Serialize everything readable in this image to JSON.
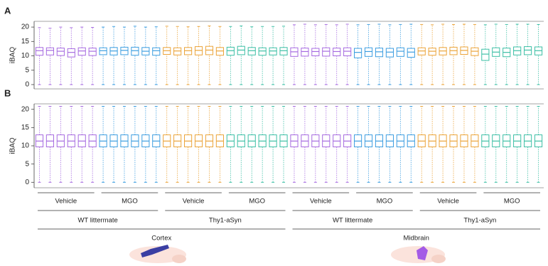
{
  "chart_data": [
    {
      "type": "box",
      "panel_label": "A",
      "y_label": "iBAQ",
      "ylim": [
        -1.5,
        22
      ],
      "yticks": [
        0,
        5,
        10,
        15,
        20
      ],
      "group_colors": [
        "#a66be0",
        "#3d9ee0",
        "#eba43a",
        "#3cbfa5",
        "#a66be0",
        "#3d9ee0",
        "#eba43a",
        "#3cbfa5"
      ],
      "boxes": [
        [
          [
            0,
            10.2,
            11.8,
            12.9,
            19.8
          ],
          [
            0,
            10.3,
            11.9,
            12.8,
            19.6
          ],
          [
            0,
            10.1,
            11.6,
            12.7,
            20
          ],
          [
            0,
            9.6,
            11.2,
            12.5,
            19.8
          ],
          [
            0,
            10.2,
            11.7,
            12.8,
            20
          ],
          [
            0,
            10.1,
            11.6,
            12.7,
            19.9
          ]
        ],
        [
          [
            0,
            10.4,
            11.8,
            12.8,
            20
          ],
          [
            0,
            10.3,
            11.7,
            12.9,
            20.2
          ],
          [
            0,
            10.4,
            11.9,
            13,
            20
          ],
          [
            0,
            10.2,
            11.8,
            13,
            20.3
          ],
          [
            0,
            10.3,
            11.6,
            12.9,
            20
          ],
          [
            0,
            10.2,
            11.8,
            12.8,
            20.1
          ]
        ],
        [
          [
            0,
            10.5,
            11.8,
            12.9,
            20.3
          ],
          [
            0,
            10.3,
            11.7,
            12.8,
            20.2
          ],
          [
            0,
            10.4,
            11.8,
            12.9,
            20.1
          ],
          [
            0,
            10.3,
            11.9,
            13.2,
            20.2
          ],
          [
            0,
            10.4,
            12,
            13.3,
            20.4
          ],
          [
            0,
            10.2,
            11.7,
            12.9,
            20.2
          ]
        ],
        [
          [
            0,
            10.2,
            11.8,
            13,
            20.2
          ],
          [
            0,
            10.4,
            12,
            13.3,
            20.4
          ],
          [
            0,
            10.3,
            11.8,
            12.9,
            20.1
          ],
          [
            0,
            10.2,
            11.7,
            12.8,
            20.2
          ],
          [
            0,
            10.3,
            11.7,
            12.8,
            20.2
          ],
          [
            0,
            10.3,
            11.8,
            12.9,
            20.3
          ]
        ],
        [
          [
            0,
            9.8,
            11.4,
            12.8,
            20.8
          ],
          [
            0,
            9.9,
            11.5,
            12.7,
            21
          ],
          [
            0,
            10,
            11.5,
            12.6,
            20.8
          ],
          [
            0,
            9.9,
            11.6,
            12.8,
            20.9
          ],
          [
            0,
            10,
            11.5,
            12.7,
            20.8
          ],
          [
            0,
            10,
            11.6,
            12.8,
            21
          ]
        ],
        [
          [
            0,
            9.3,
            11.2,
            12.6,
            20.8
          ],
          [
            0,
            9.8,
            11.5,
            12.8,
            20.9
          ],
          [
            0,
            9.7,
            11.4,
            12.7,
            21
          ],
          [
            0,
            9.6,
            11.3,
            12.6,
            20.8
          ],
          [
            0,
            9.8,
            11.6,
            12.8,
            20.9
          ],
          [
            0,
            9.5,
            11.3,
            12.6,
            21
          ]
        ],
        [
          [
            0,
            10.3,
            11.7,
            12.8,
            20.9
          ],
          [
            0,
            10.2,
            11.6,
            12.7,
            20.8
          ],
          [
            0,
            10.3,
            11.7,
            12.9,
            21
          ],
          [
            0,
            10.4,
            11.8,
            13,
            20.9
          ],
          [
            0,
            10.5,
            11.9,
            13.1,
            21
          ],
          [
            0,
            10.1,
            11.6,
            12.8,
            20.9
          ]
        ],
        [
          [
            0,
            8.4,
            10.6,
            12.3,
            20.8
          ],
          [
            0,
            9.8,
            11.3,
            12.8,
            21
          ],
          [
            0,
            9.7,
            11.2,
            12.7,
            20.9
          ],
          [
            0,
            10.3,
            11.8,
            13.1,
            21
          ],
          [
            0,
            10.4,
            12,
            13.2,
            21
          ],
          [
            0,
            10.3,
            11.8,
            13.1,
            20.9
          ]
        ]
      ]
    },
    {
      "type": "box",
      "panel_label": "B",
      "y_label": "iBAQ",
      "ylim": [
        -1.5,
        21.5
      ],
      "yticks": [
        0,
        5,
        10,
        15,
        20
      ],
      "group_colors": [
        "#a66be0",
        "#3d9ee0",
        "#eba43a",
        "#3cbfa5",
        "#a66be0",
        "#3d9ee0",
        "#eba43a",
        "#3cbfa5"
      ],
      "boxes": [
        [
          [
            0,
            9.7,
            11.3,
            13,
            20.8
          ],
          [
            0,
            9.7,
            11.3,
            13,
            20.8
          ],
          [
            0,
            9.7,
            11.3,
            13,
            20.8
          ],
          [
            0,
            9.7,
            11.3,
            13,
            20.8
          ],
          [
            0,
            9.7,
            11.3,
            13,
            20.8
          ],
          [
            0,
            9.7,
            11.3,
            13,
            20.8
          ]
        ],
        [
          [
            0,
            9.7,
            11.3,
            13,
            20.8
          ],
          [
            0,
            9.7,
            11.3,
            13,
            20.8
          ],
          [
            0,
            9.7,
            11.3,
            13,
            20.8
          ],
          [
            0,
            9.7,
            11.3,
            13,
            20.8
          ],
          [
            0,
            9.7,
            11.3,
            13,
            20.8
          ],
          [
            0,
            9.7,
            11.3,
            13,
            20.8
          ]
        ],
        [
          [
            0,
            9.7,
            11.3,
            13,
            20.8
          ],
          [
            0,
            9.7,
            11.3,
            13,
            20.8
          ],
          [
            0,
            9.7,
            11.3,
            13,
            20.8
          ],
          [
            0,
            9.7,
            11.3,
            13,
            20.8
          ],
          [
            0,
            9.7,
            11.3,
            13,
            20.8
          ],
          [
            0,
            9.7,
            11.3,
            13,
            20.8
          ]
        ],
        [
          [
            0,
            9.7,
            11.3,
            13,
            20.8
          ],
          [
            0,
            9.7,
            11.3,
            13,
            20.8
          ],
          [
            0,
            9.7,
            11.3,
            13,
            20.8
          ],
          [
            0,
            9.7,
            11.3,
            13,
            20.8
          ],
          [
            0,
            9.7,
            11.3,
            13,
            20.8
          ],
          [
            0,
            9.7,
            11.3,
            13,
            20.8
          ]
        ],
        [
          [
            0,
            9.7,
            11.3,
            13,
            20.8
          ],
          [
            0,
            9.7,
            11.3,
            13,
            20.8
          ],
          [
            0,
            9.7,
            11.3,
            13,
            20.8
          ],
          [
            0,
            9.7,
            11.3,
            13,
            20.8
          ],
          [
            0,
            9.7,
            11.3,
            13,
            20.8
          ],
          [
            0,
            9.7,
            11.3,
            13,
            20.8
          ]
        ],
        [
          [
            0,
            9.7,
            11.3,
            13,
            20.8
          ],
          [
            0,
            9.7,
            11.3,
            13,
            20.8
          ],
          [
            0,
            9.7,
            11.3,
            13,
            20.8
          ],
          [
            0,
            9.7,
            11.3,
            13,
            20.8
          ],
          [
            0,
            9.7,
            11.3,
            13,
            20.8
          ],
          [
            0,
            9.7,
            11.3,
            13,
            20.8
          ]
        ],
        [
          [
            0,
            9.7,
            11.3,
            13,
            20.8
          ],
          [
            0,
            9.7,
            11.3,
            13,
            20.8
          ],
          [
            0,
            9.7,
            11.3,
            13,
            20.8
          ],
          [
            0,
            9.7,
            11.3,
            13,
            20.8
          ],
          [
            0,
            9.7,
            11.3,
            13,
            20.8
          ],
          [
            0,
            9.7,
            11.3,
            13,
            20.8
          ]
        ],
        [
          [
            0,
            9.7,
            11.3,
            13,
            20.8
          ],
          [
            0,
            9.7,
            11.3,
            13,
            20.8
          ],
          [
            0,
            9.7,
            11.3,
            13,
            20.8
          ],
          [
            0,
            9.7,
            11.3,
            13,
            20.8
          ],
          [
            0,
            9.7,
            11.3,
            13,
            20.8
          ],
          [
            0,
            9.7,
            11.3,
            13,
            20.8
          ]
        ]
      ]
    }
  ],
  "x_groups": {
    "treatment": [
      "Vehicle",
      "MGO",
      "Vehicle",
      "MGO",
      "Vehicle",
      "MGO",
      "Vehicle",
      "MGO"
    ],
    "genotype": [
      "WT littermate",
      "Thy1-aSyn",
      "WT littermate",
      "Thy1-aSyn"
    ],
    "region": [
      "Cortex",
      "Midbrain"
    ]
  }
}
